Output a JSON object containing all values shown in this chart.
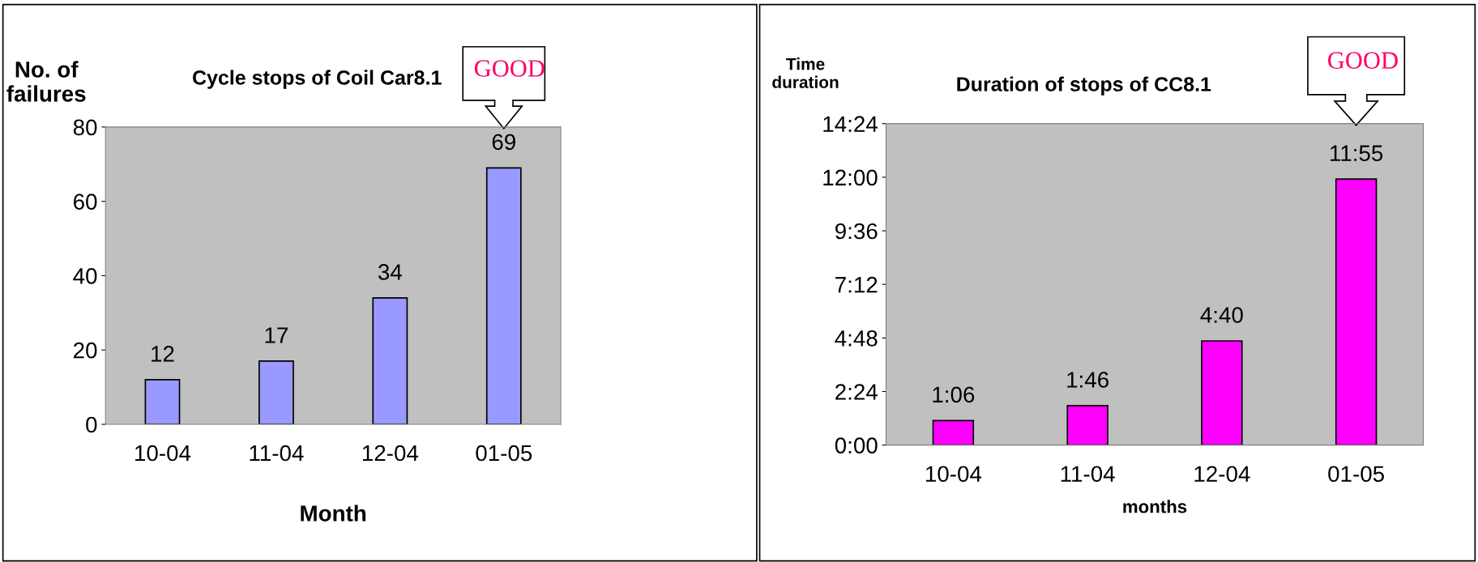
{
  "chart_data": [
    {
      "type": "bar",
      "title": "Cycle stops of Coil Car8.1",
      "ylabel": "No. of\nfailures",
      "xlabel": "Month",
      "categories": [
        "10-04",
        "11-04",
        "12-04",
        "01-05"
      ],
      "values": [
        12,
        17,
        34,
        69
      ],
      "color": "#9999ff",
      "data_labels": true,
      "ylim": [
        0,
        80
      ],
      "yticks": [
        0,
        20,
        40,
        60,
        80
      ],
      "grid": false,
      "legend": false,
      "annotations": [
        "GOOD"
      ]
    },
    {
      "type": "bar",
      "title": "Duration of stops of CC8.1",
      "ylabel": "Time\nduration",
      "xlabel": "months",
      "categories": [
        "10-04",
        "11-04",
        "12-04",
        "01-05"
      ],
      "values": [
        1.1,
        1.7667,
        4.6667,
        11.9167
      ],
      "color": "#ff00ff",
      "value_labels": [
        "1:06",
        "1:46",
        "4:40",
        "11:55"
      ],
      "ylim": [
        0,
        14.4
      ],
      "yticks": [
        {
          "value": 0,
          "label": "0:00"
        },
        {
          "value": 2.4,
          "label": "2:24"
        },
        {
          "value": 4.8,
          "label": "4:48"
        },
        {
          "value": 7.2,
          "label": "7:12"
        },
        {
          "value": 9.6,
          "label": "9:36"
        },
        {
          "value": 12,
          "label": "12:00"
        },
        {
          "value": 14.4,
          "label": "14:24"
        }
      ],
      "grid": false,
      "legend": false,
      "annotations": [
        "GOOD"
      ]
    }
  ]
}
